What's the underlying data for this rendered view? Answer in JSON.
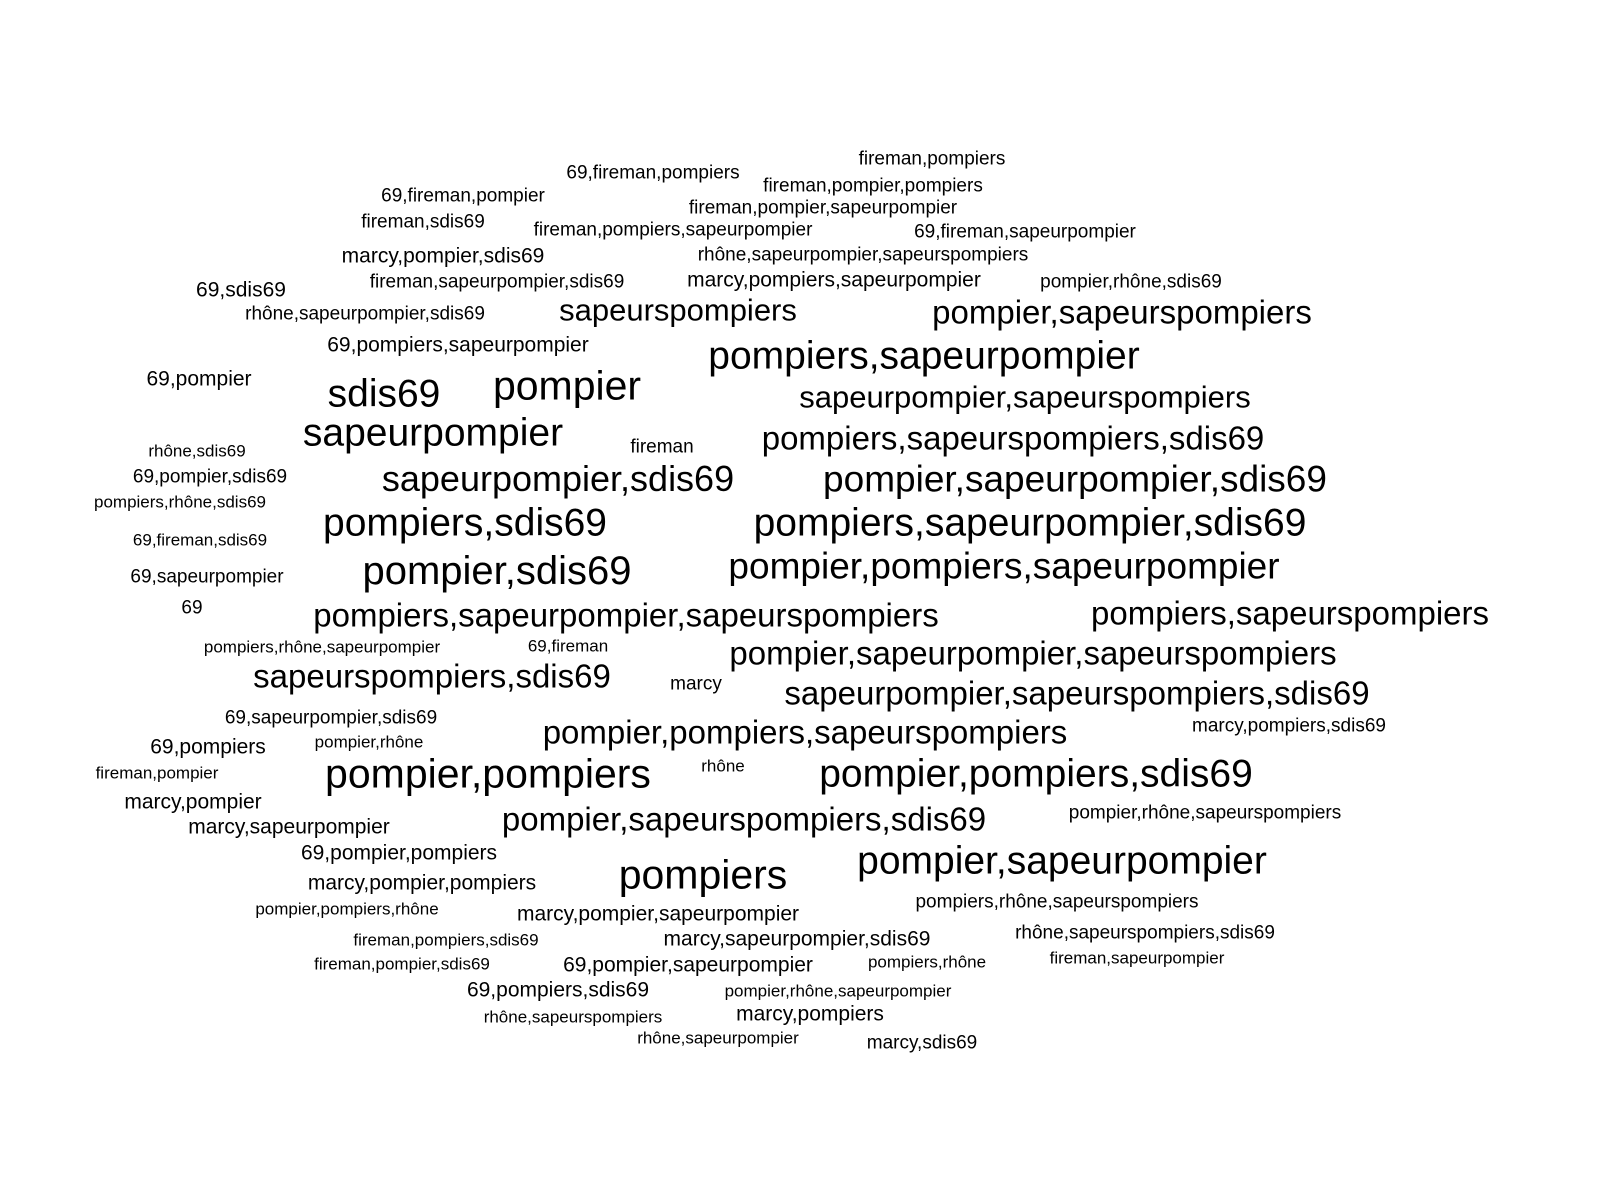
{
  "word_cloud": {
    "color": "#000000",
    "words": [
      {
        "text": "fireman,pompiers"
      },
      {
        "text": "69,fireman,pompiers"
      },
      {
        "text": "fireman,pompier,pompiers"
      },
      {
        "text": "69,fireman,pompier"
      },
      {
        "text": "fireman,pompier,sapeurpompier"
      },
      {
        "text": "fireman,sdis69"
      },
      {
        "text": "fireman,pompiers,sapeurpompier"
      },
      {
        "text": "69,fireman,sapeurpompier"
      },
      {
        "text": "marcy,pompier,sdis69"
      },
      {
        "text": "rhône,sapeurpompier,sapeurspompiers"
      },
      {
        "text": "69,sdis69"
      },
      {
        "text": "fireman,sapeurpompier,sdis69"
      },
      {
        "text": "marcy,pompiers,sapeurpompier"
      },
      {
        "text": "pompier,rhône,sdis69"
      },
      {
        "text": "rhône,sapeurpompier,sdis69"
      },
      {
        "text": "sapeurspompiers"
      },
      {
        "text": "pompier,sapeurspompiers"
      },
      {
        "text": "69,pompiers,sapeurpompier"
      },
      {
        "text": "pompiers,sapeurpompier"
      },
      {
        "text": "69,pompier"
      },
      {
        "text": "sdis69"
      },
      {
        "text": "pompier"
      },
      {
        "text": "sapeurpompier,sapeurspompiers"
      },
      {
        "text": "sapeurpompier"
      },
      {
        "text": "rhône,sdis69"
      },
      {
        "text": "fireman"
      },
      {
        "text": "pompiers,sapeurspompiers,sdis69"
      },
      {
        "text": "69,pompier,sdis69"
      },
      {
        "text": "sapeurpompier,sdis69"
      },
      {
        "text": "pompier,sapeurpompier,sdis69"
      },
      {
        "text": "pompiers,rhône,sdis69"
      },
      {
        "text": "pompiers,sdis69"
      },
      {
        "text": "pompiers,sapeurpompier,sdis69"
      },
      {
        "text": "69,fireman,sdis69"
      },
      {
        "text": "69,sapeurpompier"
      },
      {
        "text": "pompier,sdis69"
      },
      {
        "text": "pompier,pompiers,sapeurpompier"
      },
      {
        "text": "69"
      },
      {
        "text": "pompiers,sapeurpompier,sapeurspompiers"
      },
      {
        "text": "pompiers,sapeurspompiers"
      },
      {
        "text": "pompiers,rhône,sapeurpompier"
      },
      {
        "text": "69,fireman"
      },
      {
        "text": "pompier,sapeurpompier,sapeurspompiers"
      },
      {
        "text": "sapeurspompiers,sdis69"
      },
      {
        "text": "marcy"
      },
      {
        "text": "sapeurpompier,sapeurspompiers,sdis69"
      },
      {
        "text": "69,sapeurpompier,sdis69"
      },
      {
        "text": "pompier,pompiers,sapeurspompiers"
      },
      {
        "text": "marcy,pompiers,sdis69"
      },
      {
        "text": "69,pompiers"
      },
      {
        "text": "pompier,rhône"
      },
      {
        "text": "fireman,pompier"
      },
      {
        "text": "pompier,pompiers"
      },
      {
        "text": "rhône"
      },
      {
        "text": "pompier,pompiers,sdis69"
      },
      {
        "text": "marcy,pompier"
      },
      {
        "text": "marcy,sapeurpompier"
      },
      {
        "text": "pompier,sapeurspompiers,sdis69"
      },
      {
        "text": "pompier,rhône,sapeurspompiers"
      },
      {
        "text": "69,pompier,pompiers"
      },
      {
        "text": "pompiers"
      },
      {
        "text": "pompier,sapeurpompier"
      },
      {
        "text": "marcy,pompier,pompiers"
      },
      {
        "text": "pompier,pompiers,rhône"
      },
      {
        "text": "marcy,pompier,sapeurpompier"
      },
      {
        "text": "pompiers,rhône,sapeurspompiers"
      },
      {
        "text": "fireman,pompiers,sdis69"
      },
      {
        "text": "marcy,sapeurpompier,sdis69"
      },
      {
        "text": "rhône,sapeurspompiers,sdis69"
      },
      {
        "text": "fireman,pompier,sdis69"
      },
      {
        "text": "69,pompier,sapeurpompier"
      },
      {
        "text": "pompiers,rhône"
      },
      {
        "text": "fireman,sapeurpompier"
      },
      {
        "text": "69,pompiers,sdis69"
      },
      {
        "text": "pompier,rhône,sapeurpompier"
      },
      {
        "text": "rhône,sapeurspompiers"
      },
      {
        "text": "marcy,pompiers"
      },
      {
        "text": "rhône,sapeurpompier"
      },
      {
        "text": "marcy,sdis69"
      }
    ]
  }
}
